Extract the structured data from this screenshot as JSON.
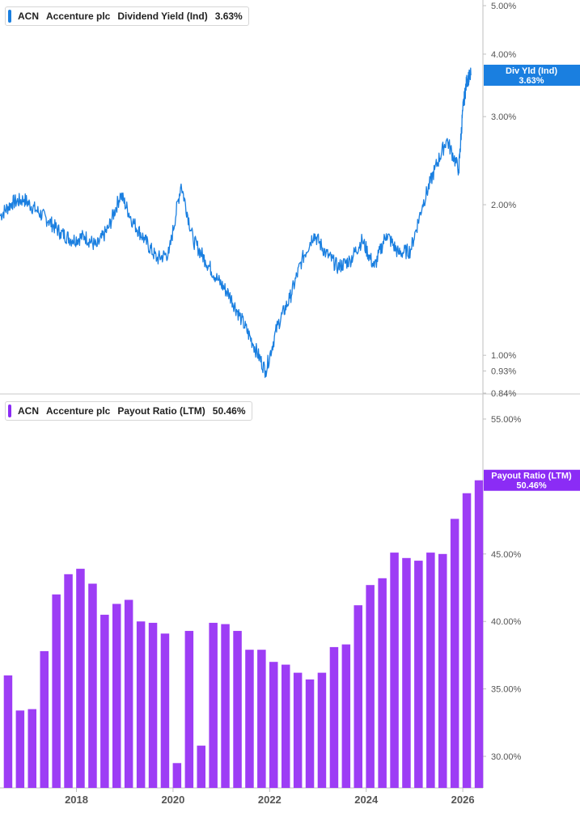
{
  "legends": [
    {
      "ticker": "ACN",
      "company": "Accenture plc",
      "metric": "Dividend Yield (Ind)",
      "value": "3.63%",
      "color": "#1a7fe0"
    },
    {
      "ticker": "ACN",
      "company": "Accenture plc",
      "metric": "Payout Ratio (LTM)",
      "value": "50.46%",
      "color": "#8b2cf5"
    }
  ],
  "chart_data": [
    {
      "type": "line",
      "title": "ACN Accenture plc Dividend Yield (Ind)",
      "y_scale": "log",
      "ylim": [
        0.84,
        5.0
      ],
      "y_ticks": [
        "5.00%",
        "4.00%",
        "3.00%",
        "2.00%",
        "1.00%",
        "0.93%",
        "0.84%"
      ],
      "y_tick_values": [
        5.0,
        4.0,
        3.0,
        2.0,
        1.0,
        0.93,
        0.84
      ],
      "xlim": [
        "2016-06",
        "2026-06"
      ],
      "last_value_tag": {
        "label": "Div Yld (Ind)",
        "value": "3.63%",
        "color": "#1a7fe0"
      },
      "series": [
        {
          "name": "Div Yld (Ind)",
          "color": "#1a7fe0",
          "points": [
            [
              "2016-06",
              1.9
            ],
            [
              "2016-09",
              2.02
            ],
            [
              "2016-12",
              2.05
            ],
            [
              "2017-03",
              1.95
            ],
            [
              "2017-06",
              1.86
            ],
            [
              "2017-09",
              1.76
            ],
            [
              "2017-12",
              1.7
            ],
            [
              "2018-03",
              1.73
            ],
            [
              "2018-06",
              1.65
            ],
            [
              "2018-09",
              1.8
            ],
            [
              "2018-12",
              2.1
            ],
            [
              "2019-03",
              1.85
            ],
            [
              "2019-06",
              1.7
            ],
            [
              "2019-09",
              1.56
            ],
            [
              "2019-12",
              1.6
            ],
            [
              "2020-03",
              2.2
            ],
            [
              "2020-06",
              1.7
            ],
            [
              "2020-09",
              1.55
            ],
            [
              "2020-12",
              1.42
            ],
            [
              "2021-03",
              1.32
            ],
            [
              "2021-06",
              1.18
            ],
            [
              "2021-09",
              1.05
            ],
            [
              "2021-12",
              0.93
            ],
            [
              "2022-03",
              1.15
            ],
            [
              "2022-06",
              1.3
            ],
            [
              "2022-09",
              1.55
            ],
            [
              "2022-12",
              1.75
            ],
            [
              "2023-03",
              1.6
            ],
            [
              "2023-06",
              1.5
            ],
            [
              "2023-09",
              1.55
            ],
            [
              "2023-12",
              1.7
            ],
            [
              "2024-03",
              1.5
            ],
            [
              "2024-06",
              1.75
            ],
            [
              "2024-09",
              1.6
            ],
            [
              "2024-12",
              1.62
            ],
            [
              "2025-03",
              2.0
            ],
            [
              "2025-06",
              2.35
            ],
            [
              "2025-09",
              2.7
            ],
            [
              "2025-12",
              2.35
            ],
            [
              "2026-01",
              3.1
            ],
            [
              "2026-02",
              3.55
            ],
            [
              "2026-03",
              3.63
            ]
          ]
        }
      ]
    },
    {
      "type": "bar",
      "title": "ACN Accenture plc Payout Ratio (LTM)",
      "ylim": [
        28.0,
        58.0
      ],
      "y_ticks": [
        "55.00%",
        "45.00%",
        "40.00%",
        "35.00%",
        "30.00%"
      ],
      "y_tick_values": [
        55,
        45,
        40,
        35,
        30
      ],
      "xlim": [
        "2016-06",
        "2026-06"
      ],
      "x_ticks": [
        "2018",
        "2020",
        "2022",
        "2024",
        "2026"
      ],
      "last_value_tag": {
        "label": "Payout Ratio (LTM)",
        "value": "50.46%",
        "color": "#8b2cf5"
      },
      "series": [
        {
          "name": "Payout Ratio (LTM)",
          "color": "#9d3df5",
          "points": [
            [
              "2016-08",
              36.0
            ],
            [
              "2016-11",
              33.4
            ],
            [
              "2017-02",
              33.5
            ],
            [
              "2017-05",
              37.8
            ],
            [
              "2017-08",
              42.0
            ],
            [
              "2017-11",
              43.5
            ],
            [
              "2018-02",
              43.9
            ],
            [
              "2018-05",
              42.8
            ],
            [
              "2018-08",
              40.5
            ],
            [
              "2018-11",
              41.3
            ],
            [
              "2019-02",
              41.6
            ],
            [
              "2019-05",
              40.0
            ],
            [
              "2019-08",
              39.9
            ],
            [
              "2019-11",
              39.1
            ],
            [
              "2020-02",
              29.5
            ],
            [
              "2020-05",
              39.3
            ],
            [
              "2020-08",
              30.8
            ],
            [
              "2020-11",
              39.9
            ],
            [
              "2021-02",
              39.8
            ],
            [
              "2021-05",
              39.3
            ],
            [
              "2021-08",
              37.9
            ],
            [
              "2021-11",
              37.9
            ],
            [
              "2022-02",
              37.0
            ],
            [
              "2022-05",
              36.8
            ],
            [
              "2022-08",
              36.2
            ],
            [
              "2022-11",
              35.7
            ],
            [
              "2023-02",
              36.2
            ],
            [
              "2023-05",
              38.1
            ],
            [
              "2023-08",
              38.3
            ],
            [
              "2023-11",
              41.2
            ],
            [
              "2024-02",
              42.7
            ],
            [
              "2024-05",
              43.2
            ],
            [
              "2024-08",
              45.1
            ],
            [
              "2024-11",
              44.7
            ],
            [
              "2025-02",
              44.5
            ],
            [
              "2025-05",
              45.1
            ],
            [
              "2025-08",
              45.0
            ],
            [
              "2025-11",
              47.6
            ],
            [
              "2026-02",
              49.5
            ],
            [
              "2026-05",
              50.46
            ]
          ]
        }
      ]
    }
  ]
}
